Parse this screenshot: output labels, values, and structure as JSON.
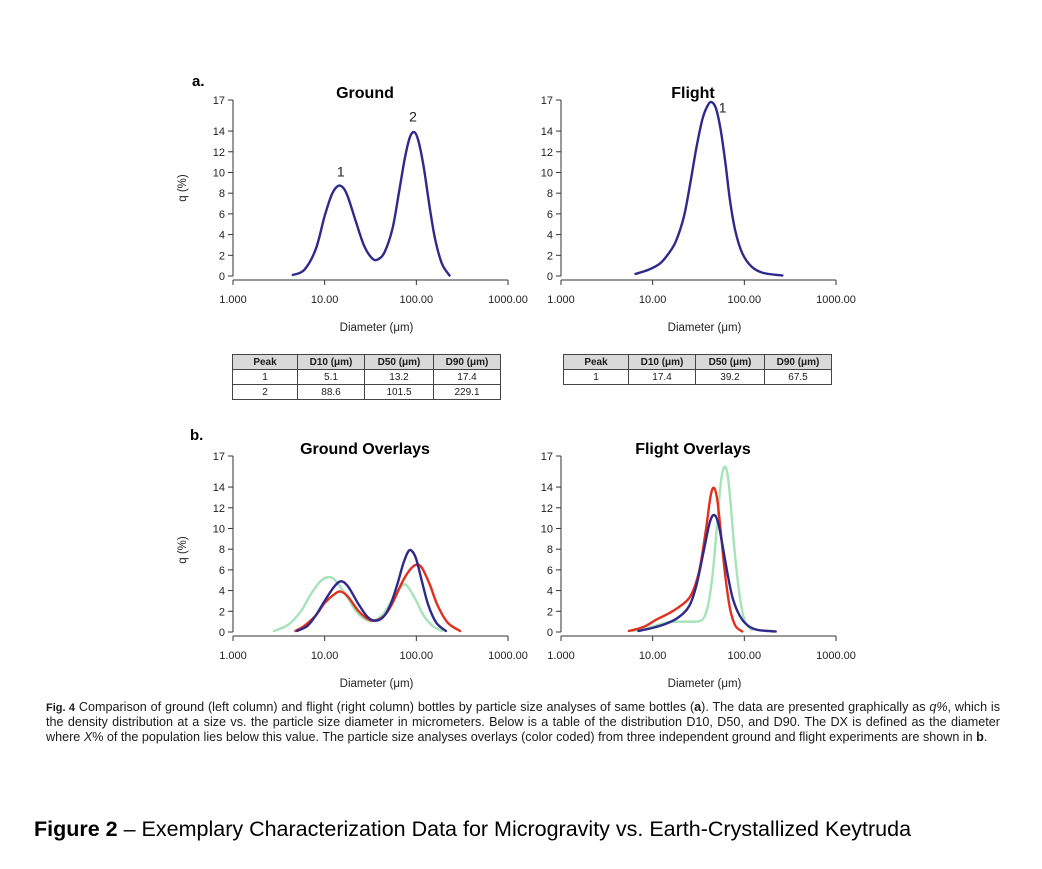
{
  "panel_a_label": "a.",
  "panel_b_label": "b.",
  "chart_data": [
    {
      "id": "ground",
      "type": "line",
      "title": "Ground",
      "xlabel": "Diameter (μm)",
      "ylabel": "q (%)",
      "xscale": "log",
      "xlim": [
        1,
        1000
      ],
      "ylim": [
        0,
        17
      ],
      "xticks": [
        "1.000",
        "10.00",
        "100.00",
        "1000.00"
      ],
      "yticks": [
        "0",
        "2",
        "4",
        "6",
        "8",
        "10",
        "12",
        "14",
        "17"
      ],
      "series": [
        {
          "color": "#2e2a8c",
          "points": [
            [
              4.5,
              0.1
            ],
            [
              6,
              0.6
            ],
            [
              8,
              2.6
            ],
            [
              10,
              5.8
            ],
            [
              12,
              7.9
            ],
            [
              14,
              8.7
            ],
            [
              16,
              8.5
            ],
            [
              18,
              7.6
            ],
            [
              22,
              5.2
            ],
            [
              27,
              2.9
            ],
            [
              33,
              1.7
            ],
            [
              38,
              1.6
            ],
            [
              45,
              2.3
            ],
            [
              55,
              4.6
            ],
            [
              65,
              8.2
            ],
            [
              75,
              11.4
            ],
            [
              85,
              13.4
            ],
            [
              95,
              13.9
            ],
            [
              105,
              13.1
            ],
            [
              120,
              10.6
            ],
            [
              140,
              6.6
            ],
            [
              160,
              3.6
            ],
            [
              190,
              1.2
            ],
            [
              230,
              0.05
            ]
          ]
        }
      ],
      "annotations": [
        {
          "text": "1",
          "x": 15,
          "y": 9.6
        },
        {
          "text": "2",
          "x": 92,
          "y": 14.9
        }
      ]
    },
    {
      "id": "flight",
      "type": "line",
      "title": "Flight",
      "xlabel": "Diameter (μm)",
      "ylabel": "",
      "xscale": "log",
      "xlim": [
        1,
        1000
      ],
      "ylim": [
        0,
        17
      ],
      "xticks": [
        "1.000",
        "10.00",
        "100.00",
        "1000.00"
      ],
      "yticks": [
        "0",
        "2",
        "4",
        "6",
        "8",
        "10",
        "12",
        "14",
        "17"
      ],
      "series": [
        {
          "color": "#2e2a8c",
          "points": [
            [
              6.5,
              0.2
            ],
            [
              9,
              0.6
            ],
            [
              12,
              1.2
            ],
            [
              15,
              2.2
            ],
            [
              18,
              3.4
            ],
            [
              22,
              5.8
            ],
            [
              26,
              9.2
            ],
            [
              30,
              12.4
            ],
            [
              35,
              15.2
            ],
            [
              40,
              16.5
            ],
            [
              44,
              16.8
            ],
            [
              49,
              16.2
            ],
            [
              55,
              14.2
            ],
            [
              62,
              11.0
            ],
            [
              70,
              7.2
            ],
            [
              80,
              4.3
            ],
            [
              95,
              2.2
            ],
            [
              120,
              0.9
            ],
            [
              160,
              0.3
            ],
            [
              260,
              0.05
            ]
          ]
        }
      ],
      "annotations": [
        {
          "text": "1",
          "x": 58,
          "y": 15.8
        }
      ]
    },
    {
      "id": "ground-overlays",
      "type": "line",
      "title": "Ground Overlays",
      "xlabel": "Diameter (μm)",
      "ylabel": "q (%)",
      "xscale": "log",
      "xlim": [
        1,
        1000
      ],
      "ylim": [
        0,
        17
      ],
      "xticks": [
        "1.000",
        "10.00",
        "100.00",
        "1000.00"
      ],
      "yticks": [
        "0",
        "2",
        "4",
        "6",
        "8",
        "10",
        "12",
        "14",
        "17"
      ],
      "series": [
        {
          "color": "#a6e3b8",
          "points": [
            [
              2.8,
              0.1
            ],
            [
              4,
              0.7
            ],
            [
              5.5,
              2.0
            ],
            [
              7,
              3.6
            ],
            [
              9,
              4.9
            ],
            [
              11,
              5.3
            ],
            [
              13,
              5.0
            ],
            [
              17,
              3.6
            ],
            [
              22,
              2.0
            ],
            [
              28,
              1.2
            ],
            [
              35,
              1.1
            ],
            [
              45,
              1.9
            ],
            [
              55,
              3.2
            ],
            [
              65,
              4.2
            ],
            [
              75,
              4.6
            ],
            [
              85,
              4.1
            ],
            [
              100,
              3.0
            ],
            [
              120,
              1.6
            ],
            [
              150,
              0.6
            ],
            [
              190,
              0.1
            ]
          ]
        },
        {
          "color": "#e0301e",
          "points": [
            [
              4.8,
              0.1
            ],
            [
              6,
              0.6
            ],
            [
              8,
              1.6
            ],
            [
              10,
              2.8
            ],
            [
              13,
              3.7
            ],
            [
              15,
              3.9
            ],
            [
              18,
              3.4
            ],
            [
              23,
              2.1
            ],
            [
              29,
              1.3
            ],
            [
              35,
              1.1
            ],
            [
              45,
              1.6
            ],
            [
              55,
              2.8
            ],
            [
              70,
              4.8
            ],
            [
              85,
              6.0
            ],
            [
              100,
              6.5
            ],
            [
              115,
              6.2
            ],
            [
              140,
              4.6
            ],
            [
              170,
              2.6
            ],
            [
              220,
              0.9
            ],
            [
              300,
              0.1
            ]
          ]
        },
        {
          "color": "#2e2a8c",
          "points": [
            [
              5,
              0.1
            ],
            [
              6.5,
              0.6
            ],
            [
              8,
              1.6
            ],
            [
              10,
              3.0
            ],
            [
              12.5,
              4.3
            ],
            [
              15,
              4.9
            ],
            [
              18,
              4.4
            ],
            [
              23,
              2.8
            ],
            [
              29,
              1.5
            ],
            [
              35,
              1.1
            ],
            [
              43,
              1.4
            ],
            [
              52,
              2.6
            ],
            [
              62,
              4.6
            ],
            [
              72,
              6.6
            ],
            [
              82,
              7.8
            ],
            [
              90,
              7.8
            ],
            [
              100,
              7.0
            ],
            [
              115,
              4.9
            ],
            [
              135,
              2.6
            ],
            [
              165,
              0.9
            ],
            [
              210,
              0.1
            ]
          ]
        }
      ]
    },
    {
      "id": "flight-overlays",
      "type": "line",
      "title": "Flight Overlays",
      "xlabel": "Diameter (μm)",
      "ylabel": "",
      "xscale": "log",
      "xlim": [
        1,
        1000
      ],
      "ylim": [
        0,
        17
      ],
      "xticks": [
        "1.000",
        "10.00",
        "100.00",
        "1000.00"
      ],
      "yticks": [
        "0",
        "2",
        "4",
        "6",
        "8",
        "10",
        "12",
        "14",
        "17"
      ],
      "series": [
        {
          "color": "#a6e3b8",
          "points": [
            [
              6,
              0.1
            ],
            [
              9,
              0.4
            ],
            [
              14,
              0.9
            ],
            [
              20,
              1.0
            ],
            [
              28,
              1.0
            ],
            [
              35,
              1.2
            ],
            [
              40,
              2.5
            ],
            [
              45,
              5.5
            ],
            [
              50,
              10.0
            ],
            [
              55,
              14.2
            ],
            [
              60,
              15.9
            ],
            [
              65,
              15.4
            ],
            [
              70,
              13.0
            ],
            [
              78,
              8.0
            ],
            [
              88,
              3.8
            ],
            [
              100,
              1.2
            ],
            [
              120,
              0.2
            ]
          ]
        },
        {
          "color": "#e0301e",
          "points": [
            [
              5.5,
              0.1
            ],
            [
              8,
              0.5
            ],
            [
              11,
              1.2
            ],
            [
              15,
              1.8
            ],
            [
              20,
              2.5
            ],
            [
              26,
              3.5
            ],
            [
              32,
              5.8
            ],
            [
              38,
              9.8
            ],
            [
              43,
              13.2
            ],
            [
              47,
              13.9
            ],
            [
              51,
              12.6
            ],
            [
              56,
              9.2
            ],
            [
              62,
              5.4
            ],
            [
              70,
              2.2
            ],
            [
              80,
              0.6
            ],
            [
              95,
              0.05
            ]
          ]
        },
        {
          "color": "#2e2a8c",
          "points": [
            [
              7,
              0.1
            ],
            [
              10,
              0.4
            ],
            [
              14,
              0.8
            ],
            [
              19,
              1.4
            ],
            [
              25,
              2.5
            ],
            [
              30,
              4.5
            ],
            [
              36,
              7.8
            ],
            [
              42,
              10.6
            ],
            [
              47,
              11.3
            ],
            [
              52,
              10.5
            ],
            [
              58,
              8.3
            ],
            [
              66,
              5.5
            ],
            [
              75,
              3.2
            ],
            [
              90,
              1.5
            ],
            [
              110,
              0.6
            ],
            [
              140,
              0.2
            ],
            [
              220,
              0.05
            ]
          ]
        }
      ]
    }
  ],
  "tables": {
    "ground": {
      "headers": [
        "Peak",
        "D10 (μm)",
        "D50 (μm)",
        "D90 (μm)"
      ],
      "rows": [
        [
          "1",
          "5.1",
          "13.2",
          "17.4"
        ],
        [
          "2",
          "88.6",
          "101.5",
          "229.1"
        ]
      ]
    },
    "flight": {
      "headers": [
        "Peak",
        "D10 (μm)",
        "D50 (μm)",
        "D90 (μm)"
      ],
      "rows": [
        [
          "1",
          "17.4",
          "39.2",
          "67.5"
        ]
      ]
    }
  },
  "caption": {
    "label": "Fig. 4",
    "part1": " Comparison of ground (left column) and flight (right column) bottles by particle size analyses of same bottles (",
    "part1_bold": "a",
    "part2": "). The data are presented graphically as ",
    "part2_italic": "q%",
    "part3": ", which is the density distribution at a size vs. the particle size diameter in micrometers. Below is a table of the distribution D10, D50, and D90. The DX is defined as the diameter where ",
    "part3_italic": "X",
    "part4": "% of the population lies below this value. The particle size analyses overlays (color coded) from three independent ground and flight experiments are shown in ",
    "part4_bold": "b",
    "part5": "."
  },
  "figure_title": {
    "number": "Figure 2",
    "text": " – Exemplary Characterization Data for Microgravity vs. Earth-Crystallized Keytruda"
  }
}
